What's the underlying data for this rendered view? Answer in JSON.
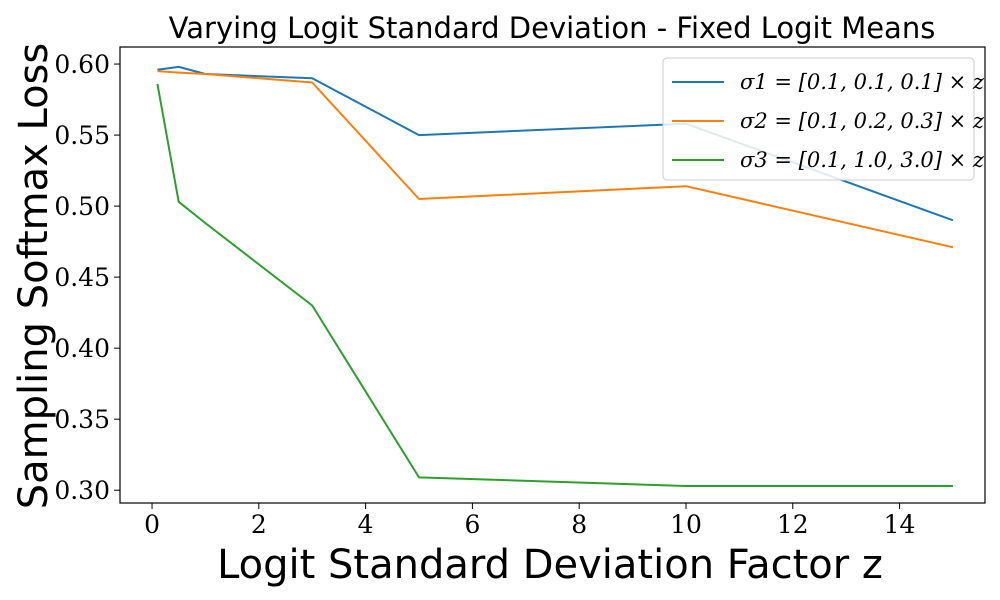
{
  "chart_data": {
    "type": "line",
    "title": "Varying Logit Standard Deviation - Fixed Logit Means",
    "xlabel": "Logit Standard Deviation Factor z",
    "ylabel": "Sampling Softmax Loss",
    "xlim": [
      -0.6,
      15.6
    ],
    "ylim": [
      0.291,
      0.612
    ],
    "xticks": [
      0,
      2,
      4,
      6,
      8,
      10,
      12,
      14
    ],
    "yticks": [
      0.3,
      0.35,
      0.4,
      0.45,
      0.5,
      0.55,
      0.6
    ],
    "ytick_labels": [
      "0.30",
      "0.35",
      "0.40",
      "0.45",
      "0.50",
      "0.55",
      "0.60"
    ],
    "grid": false,
    "legend_position": "top-right",
    "series": [
      {
        "name": "σ1 = [0.1, 0.1, 0.1] × z",
        "color": "#1f77b4",
        "x": [
          0.1,
          0.5,
          1,
          3,
          5,
          10,
          15
        ],
        "y": [
          0.596,
          0.598,
          0.593,
          0.59,
          0.55,
          0.558,
          0.49
        ]
      },
      {
        "name": "σ2 = [0.1, 0.2, 0.3] × z",
        "color": "#ff7f0e",
        "x": [
          0.1,
          0.5,
          1,
          3,
          5,
          10,
          15
        ],
        "y": [
          0.595,
          0.594,
          0.593,
          0.587,
          0.505,
          0.514,
          0.471
        ]
      },
      {
        "name": "σ3 = [0.1, 1.0, 3.0] × z",
        "color": "#2ca02c",
        "x": [
          0.1,
          0.5,
          1,
          3,
          5,
          10,
          15
        ],
        "y": [
          0.586,
          0.503,
          0.488,
          0.43,
          0.309,
          0.303,
          0.303
        ]
      }
    ]
  }
}
